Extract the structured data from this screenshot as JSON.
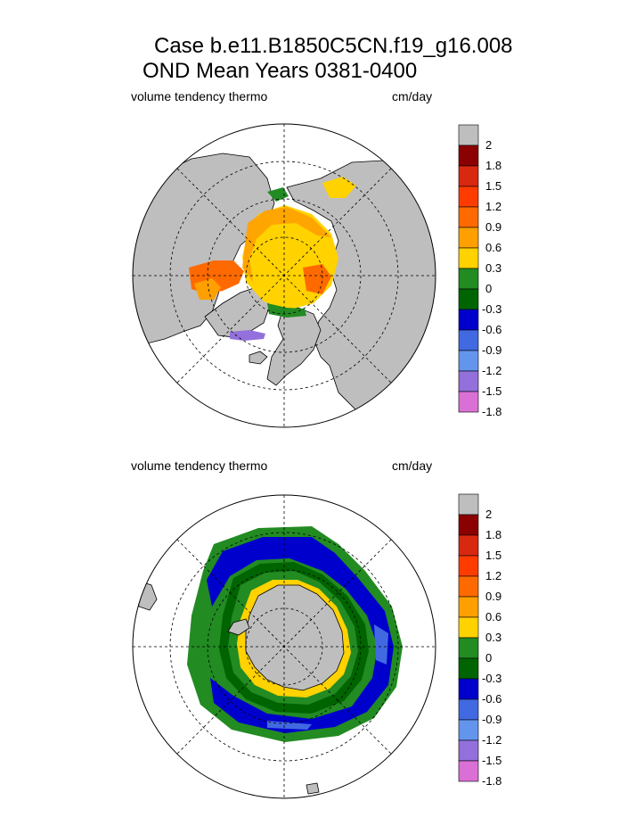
{
  "title": {
    "line1": "Case b.e11.B1850C5CN.f19_g16.008",
    "line2": "OND Mean   Years 0381-0400"
  },
  "panels": [
    {
      "hemisphere": "north",
      "variable_label": "volume tendency thermo",
      "units_label": "cm/day",
      "colorbar": {
        "colors": [
          "#bebebe",
          "#8b0000",
          "#d92810",
          "#ff3c00",
          "#ff6a00",
          "#ffa000",
          "#ffd200",
          "#228b22",
          "#006400",
          "#0000cd",
          "#4169e1",
          "#6495ed",
          "#9370db",
          "#da70d6"
        ],
        "labels": [
          "2",
          "1.8",
          "1.5",
          "1.2",
          "0.9",
          "0.6",
          "0.3",
          "0",
          "-0.3",
          "-0.6",
          "-0.9",
          "-1.2",
          "-1.5",
          "-1.8"
        ]
      }
    },
    {
      "hemisphere": "south",
      "variable_label": "volume tendency thermo",
      "units_label": "cm/day",
      "colorbar": {
        "colors": [
          "#bebebe",
          "#8b0000",
          "#d92810",
          "#ff3c00",
          "#ff6a00",
          "#ffa000",
          "#ffd200",
          "#228b22",
          "#006400",
          "#0000cd",
          "#4169e1",
          "#6495ed",
          "#9370db",
          "#da70d6"
        ],
        "labels": [
          "2",
          "1.8",
          "1.5",
          "1.2",
          "0.9",
          "0.6",
          "0.3",
          "0",
          "-0.3",
          "-0.6",
          "-0.9",
          "-1.2",
          "-1.5",
          "-1.8"
        ]
      }
    }
  ],
  "colors": {
    "land": "#bebebe",
    "ocean": "#ffffff",
    "grid": "#000000"
  }
}
